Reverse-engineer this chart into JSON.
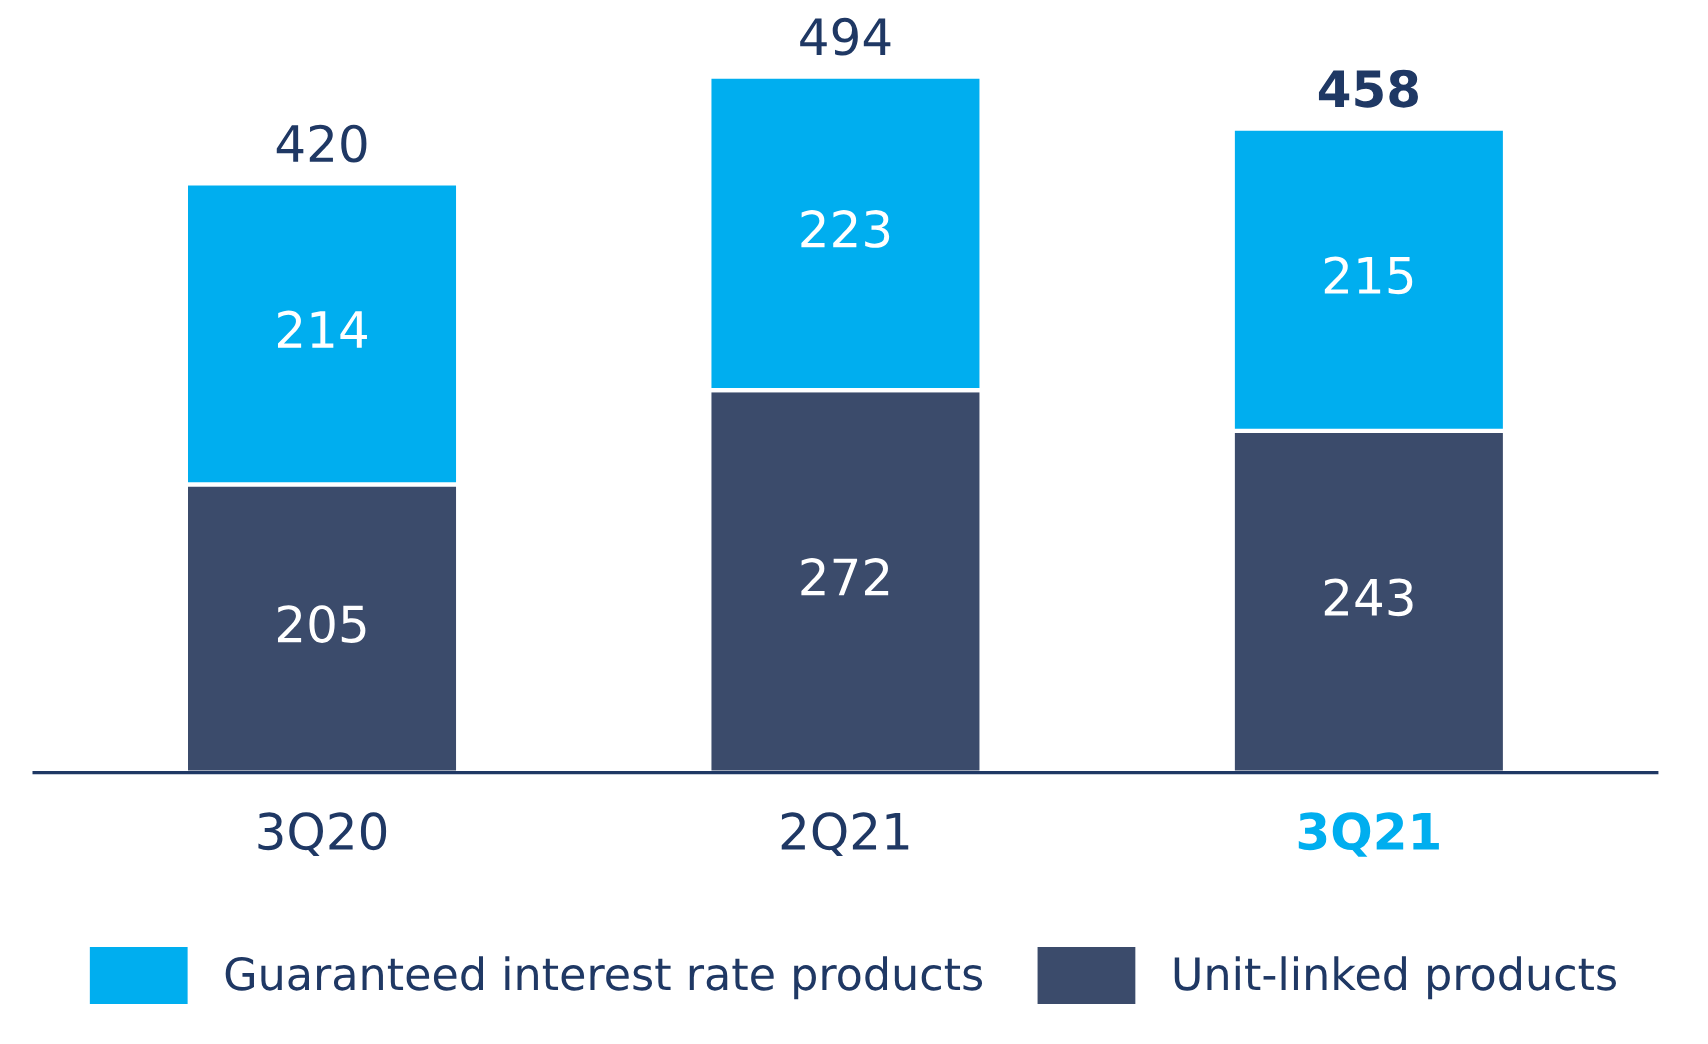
{
  "chart_data": {
    "type": "bar",
    "stacked": true,
    "categories": [
      "3Q20",
      "2Q21",
      "3Q21"
    ],
    "series": [
      {
        "name": "Unit-linked products",
        "color": "#3b4b6b",
        "values": [
          205,
          272,
          243
        ]
      },
      {
        "name": "Guaranteed interest rate products",
        "color": "#00aeef",
        "values": [
          214,
          223,
          215
        ]
      }
    ],
    "data_labels": true,
    "totals": [
      "420",
      "494",
      "458"
    ],
    "legend": "bottom",
    "grid": false
  }
}
